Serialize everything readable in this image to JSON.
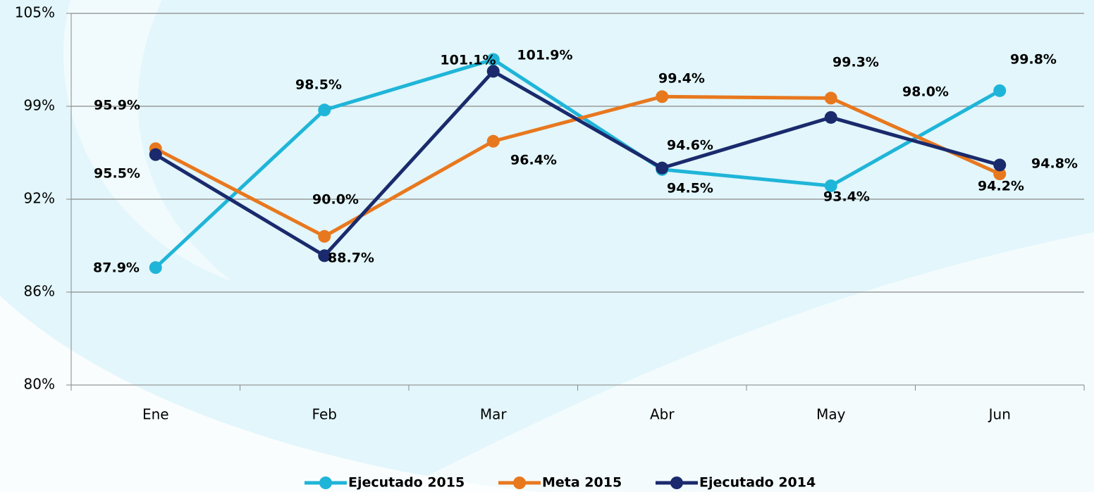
{
  "chart_data": {
    "type": "line",
    "categories": [
      "Ene",
      "Feb",
      "Mar",
      "Abr",
      "May",
      "Jun"
    ],
    "series": [
      {
        "name": "Ejecutado 2015",
        "color": "#1fb5d8",
        "values": [
          87.9,
          98.5,
          101.9,
          94.5,
          93.4,
          99.8
        ],
        "value_labels": [
          "87.9%",
          "98.5%",
          "101.9%",
          "94.5%",
          "93.4%",
          "99.8%"
        ]
      },
      {
        "name": "Meta 2015",
        "color": "#e8781e",
        "values": [
          95.9,
          90.0,
          96.4,
          99.4,
          99.3,
          94.2
        ],
        "value_labels": [
          "95.9%",
          "90.0%",
          "96.4%",
          "99.4%",
          "99.3%",
          "94.2%"
        ]
      },
      {
        "name": "Ejecutado 2014",
        "color": "#1a2a6c",
        "values": [
          95.5,
          88.7,
          101.1,
          94.6,
          98.0,
          94.8
        ],
        "value_labels": [
          "95.5%",
          "88.7%",
          "101.1%",
          "94.6%",
          "98.0%",
          "94.8%"
        ]
      }
    ],
    "ylim": [
      80,
      105
    ],
    "yticks": [
      {
        "value": 80,
        "label": "80%"
      },
      {
        "value": 86.25,
        "label": "86%"
      },
      {
        "value": 92.5,
        "label": "92%"
      },
      {
        "value": 98.75,
        "label": "99%"
      },
      {
        "value": 105,
        "label": "105%"
      }
    ],
    "grid": true,
    "legend": "bottom"
  }
}
